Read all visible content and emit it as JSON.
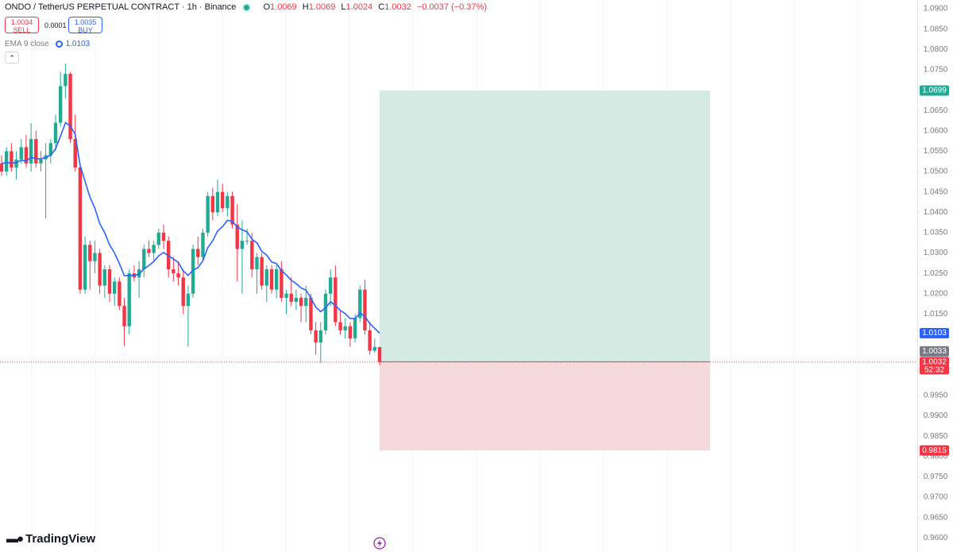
{
  "header": {
    "symbol": "ONDO / TetherUS PERPETUAL CONTRACT · 1h · Binance",
    "open_key": "O",
    "high_key": "H",
    "low_key": "L",
    "close_key": "C",
    "change": "−0.0037 (−0.37%)"
  },
  "trade": {
    "sell_price": 1.0034,
    "sell": "SELL",
    "spread": 0.0001,
    "buy_price": 1.0035,
    "buy": "BUY"
  },
  "branding": "TradingView",
  "chart_data": {
    "type": "candlestick",
    "up_color": "#22ab94",
    "down_color": "#f23645",
    "open": [
      1.052,
      1.05,
      1.055,
      1.051,
      1.053,
      1.056,
      1.052,
      1.058,
      1.052,
      1.053,
      1.054,
      1.057,
      1.062,
      1.071,
      1.074,
      1.058,
      1.051,
      1.021,
      1.032,
      1.028,
      1.03,
      1.022,
      1.026,
      1.02,
      1.023,
      1.017,
      1.012,
      1.025,
      1.024,
      1.026,
      1.031,
      1.03,
      1.032,
      1.035,
      1.033,
      1.026,
      1.025,
      1.024,
      1.017,
      1.02,
      1.031,
      1.029,
      1.035,
      1.044,
      1.04,
      1.045,
      1.041,
      1.044,
      1.037,
      1.031,
      1.033,
      1.033,
      1.026,
      1.029,
      1.022,
      1.026,
      1.021,
      1.026,
      1.019,
      1.02,
      1.018,
      1.019,
      1.017,
      1.019,
      1.011,
      1.008,
      1.011,
      1.02,
      1.024,
      1.013,
      1.011,
      1.012,
      1.009,
      1.014,
      1.021,
      1.011,
      1.006,
      1.0069
    ],
    "high": [
      1.054,
      1.056,
      1.057,
      1.055,
      1.058,
      1.059,
      1.0619,
      1.06,
      1.055,
      1.057,
      1.058,
      1.064,
      1.0745,
      1.0765,
      1.0745,
      1.064,
      1.052,
      1.034,
      1.033,
      1.033,
      1.031,
      1.027,
      1.027,
      1.024,
      1.024,
      1.019,
      1.026,
      1.027,
      1.028,
      1.032,
      1.033,
      1.033,
      1.036,
      1.037,
      1.034,
      1.029,
      1.028,
      1.026,
      1.022,
      1.032,
      1.034,
      1.036,
      1.045,
      1.046,
      1.048,
      1.047,
      1.045,
      1.045,
      1.042,
      1.038,
      1.036,
      1.035,
      1.03,
      1.03,
      1.027,
      1.027,
      1.027,
      1.028,
      1.021,
      1.024,
      1.021,
      1.02,
      1.022,
      1.02,
      1.013,
      1.013,
      1.021,
      1.026,
      1.027,
      1.016,
      1.014,
      1.013,
      1.015,
      1.022,
      1.0235,
      1.013,
      1.009,
      1.0069
    ],
    "low": [
      1.049,
      1.049,
      1.05,
      1.048,
      1.052,
      1.051,
      1.05,
      1.051,
      1.05,
      1.0385,
      1.052,
      1.055,
      1.061,
      1.068,
      1.057,
      1.05,
      1.02,
      1.02,
      1.021,
      1.025,
      1.02,
      1.019,
      1.018,
      1.017,
      1.016,
      1.0072,
      1.01,
      1.023,
      1.019,
      1.024,
      1.029,
      1.028,
      1.031,
      1.031,
      1.024,
      1.023,
      1.022,
      1.015,
      1.007,
      1.019,
      1.027,
      1.028,
      1.034,
      1.038,
      1.039,
      1.04,
      1.039,
      1.036,
      1.023,
      1.02,
      1.032,
      1.024,
      1.02,
      1.021,
      1.018,
      1.02,
      1.019,
      1.018,
      1.015,
      1.017,
      1.016,
      1.013,
      1.013,
      1.01,
      1.005,
      1.003,
      1.01,
      1.017,
      1.012,
      1.01,
      1.009,
      1.007,
      1.008,
      1.013,
      1.01,
      1.005,
      1.0055,
      1.0024
    ],
    "close": [
      1.05,
      1.055,
      1.051,
      1.053,
      1.056,
      1.052,
      1.058,
      1.052,
      1.053,
      1.054,
      1.057,
      1.062,
      1.071,
      1.074,
      1.058,
      1.051,
      1.021,
      1.032,
      1.028,
      1.03,
      1.022,
      1.026,
      1.02,
      1.023,
      1.017,
      1.012,
      1.025,
      1.024,
      1.026,
      1.031,
      1.03,
      1.032,
      1.035,
      1.033,
      1.026,
      1.025,
      1.024,
      1.017,
      1.02,
      1.031,
      1.029,
      1.035,
      1.044,
      1.04,
      1.045,
      1.041,
      1.044,
      1.037,
      1.031,
      1.033,
      1.033,
      1.026,
      1.029,
      1.022,
      1.026,
      1.021,
      1.026,
      1.019,
      1.02,
      1.018,
      1.019,
      1.017,
      1.019,
      1.011,
      1.008,
      1.011,
      1.02,
      1.024,
      1.013,
      1.011,
      1.012,
      1.009,
      1.014,
      1.021,
      1.011,
      1.006,
      1.0069,
      1.0032
    ],
    "ema": {
      "name": "EMA 9 close",
      "color": "#2962ff",
      "values": [
        1.052,
        1.0522,
        1.0521,
        1.0522,
        1.0528,
        1.0526,
        1.0535,
        1.0532,
        1.0531,
        1.0535,
        1.054,
        1.0556,
        1.0587,
        1.062,
        1.0612,
        1.0592,
        1.0515,
        1.0476,
        1.0437,
        1.041,
        1.0372,
        1.035,
        1.032,
        1.03,
        1.0274,
        1.0244,
        1.0245,
        1.0245,
        1.0248,
        1.0261,
        1.0269,
        1.0279,
        1.0293,
        1.0301,
        1.0293,
        1.0285,
        1.0277,
        1.0256,
        1.0245,
        1.0258,
        1.0264,
        1.0281,
        1.0313,
        1.033,
        1.0354,
        1.0365,
        1.038,
        1.0378,
        1.0364,
        1.0357,
        1.0352,
        1.0334,
        1.0325,
        1.0304,
        1.0295,
        1.0278,
        1.0274,
        1.0257,
        1.0246,
        1.0233,
        1.0225,
        1.0214,
        1.0209,
        1.0189,
        1.0167,
        1.0156,
        1.0165,
        1.018,
        1.0171,
        1.0159,
        1.0151,
        1.0139,
        1.0139,
        1.0153,
        1.0144,
        1.0127,
        1.0115,
        1.0103
      ]
    },
    "position": {
      "target": 1.0699,
      "entry": 1.0033,
      "stop": 0.9815,
      "profit_color": "#d4ebe4",
      "loss_color": "#f5dadd"
    },
    "countdown": "52:32",
    "ylim": [
      0.95655,
      1.09215
    ],
    "yticks": [
      {
        "value": 1.09,
        "label": "1.0900"
      },
      {
        "value": 1.085,
        "label": "1.0850"
      },
      {
        "value": 1.08,
        "label": "1.0800"
      },
      {
        "value": 1.075,
        "label": "1.0750"
      },
      {
        "value": 1.065,
        "label": "1.0650"
      },
      {
        "value": 1.06,
        "label": "1.0600"
      },
      {
        "value": 1.055,
        "label": "1.0550"
      },
      {
        "value": 1.05,
        "label": "1.0500"
      },
      {
        "value": 1.045,
        "label": "1.0450"
      },
      {
        "value": 1.04,
        "label": "1.0400"
      },
      {
        "value": 1.035,
        "label": "1.0350"
      },
      {
        "value": 1.03,
        "label": "1.0300"
      },
      {
        "value": 1.025,
        "label": "1.0250"
      },
      {
        "value": 1.02,
        "label": "1.0200"
      },
      {
        "value": 1.015,
        "label": "1.0150"
      },
      {
        "value": 0.995,
        "label": "0.9950"
      },
      {
        "value": 0.99,
        "label": "0.9900"
      },
      {
        "value": 0.985,
        "label": "0.9850"
      },
      {
        "value": 0.98,
        "label": "0.9800"
      },
      {
        "value": 0.975,
        "label": "0.9750"
      },
      {
        "value": 0.97,
        "label": "0.9700"
      },
      {
        "value": 0.965,
        "label": "0.9650"
      },
      {
        "value": 0.96,
        "label": "0.9600"
      }
    ]
  }
}
